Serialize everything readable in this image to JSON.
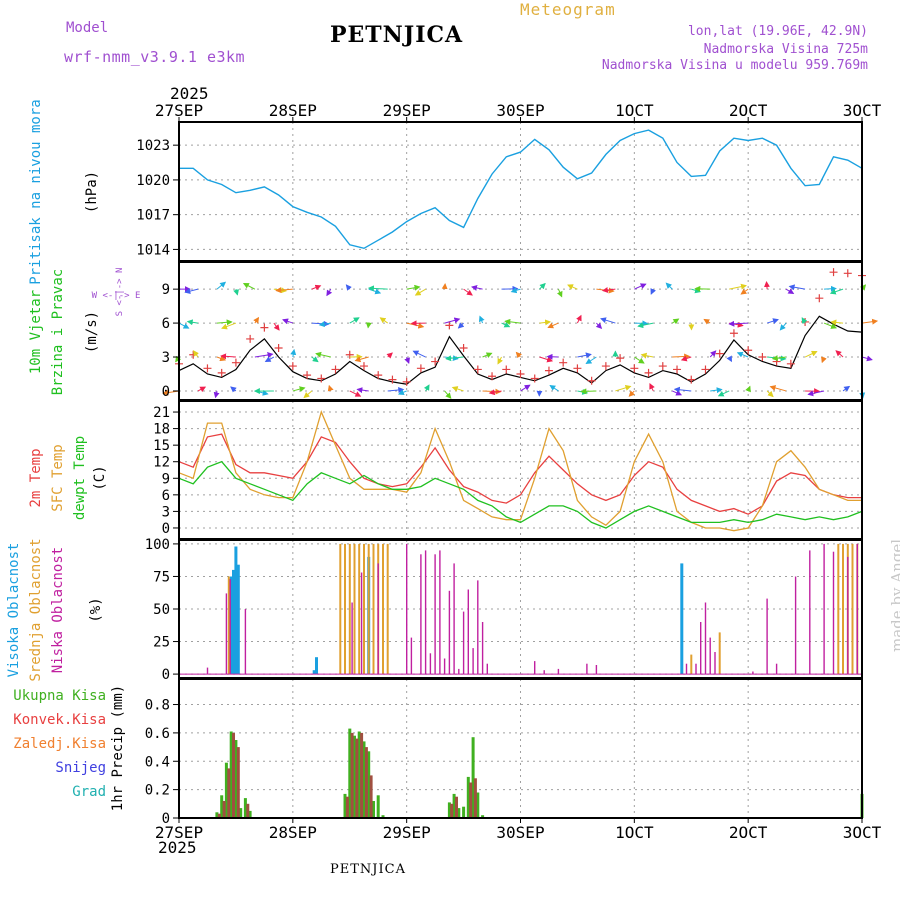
{
  "header": {
    "model_label": "Model",
    "model_name": "wrf-nmm_v3.9.1 e3km",
    "title": "PETNJICA",
    "meteogram": "Meteogram",
    "lonlat": "lon,lat (19.96E, 42.9N)",
    "altitude": "Nadmorska Visina 725m",
    "model_altitude": "Nadmorska Visina u modelu 959.769m"
  },
  "time_axis": {
    "year_top": "2025",
    "year_bottom": "2025",
    "labels": [
      "27SEP",
      "28SEP",
      "29SEP",
      "30SEP",
      "1OCT",
      "2OCT",
      "3OCT"
    ],
    "label_positions_hours": [
      0,
      24,
      48,
      72,
      96,
      120,
      144
    ]
  },
  "footer": {
    "station": "PETNJICA",
    "credit": "made by Angel"
  },
  "colors": {
    "pressure": "#1aa0e0",
    "t2m": "#e84040",
    "sfc": "#e0a030",
    "dewpt": "#20c020",
    "high": "#1aa0e0",
    "mid": "#e0a030",
    "low": "#c020a0",
    "precip_total": "#40b020",
    "precip_conv": "#a05040",
    "speed": "#000000",
    "gust": "#e04040"
  },
  "chart_data": [
    {
      "type": "line",
      "title": "Pritisak na nivou mora",
      "ylabel": "(hPa)",
      "ylim": [
        1013,
        1025
      ],
      "yticks": [
        1014,
        1017,
        1020,
        1023
      ],
      "x_hours": [
        0,
        3,
        6,
        9,
        12,
        15,
        18,
        21,
        24,
        27,
        30,
        33,
        36,
        39,
        42,
        45,
        48,
        51,
        54,
        57,
        60,
        63,
        66,
        69,
        72,
        75,
        78,
        81,
        84,
        87,
        90,
        93,
        96,
        99,
        102,
        105,
        108,
        111,
        114,
        117,
        120,
        123,
        126,
        129,
        132,
        135,
        138,
        141,
        144
      ],
      "series": [
        {
          "name": "Pritisak na nivou mora",
          "values": [
            1021,
            1021,
            1020,
            1019.6,
            1018.9,
            1019.1,
            1019.4,
            1018.7,
            1017.7,
            1017.2,
            1016.8,
            1016,
            1014.4,
            1014.1,
            1014.8,
            1015.5,
            1016.4,
            1017.1,
            1017.6,
            1016.5,
            1015.9,
            1018.4,
            1020.5,
            1022,
            1022.4,
            1023.5,
            1022.6,
            1021.1,
            1020.1,
            1020.6,
            1022.2,
            1023.4,
            1024,
            1024.3,
            1023.6,
            1021.5,
            1020.3,
            1020.4,
            1022.5,
            1023.6,
            1023.4,
            1023.6,
            1023,
            1021,
            1019.5,
            1019.6,
            1022,
            1021.7,
            1021
          ]
        }
      ]
    },
    {
      "type": "line",
      "title": "10m Vjetar Brzina i Pravac",
      "ylabel": "(m/s)",
      "ylim": [
        -0.8,
        11.4
      ],
      "yticks": [
        0,
        3,
        6,
        9
      ],
      "x_hours": [
        0,
        3,
        6,
        9,
        12,
        15,
        18,
        21,
        24,
        27,
        30,
        33,
        36,
        39,
        42,
        45,
        48,
        51,
        54,
        57,
        60,
        63,
        66,
        69,
        72,
        75,
        78,
        81,
        84,
        87,
        90,
        93,
        96,
        99,
        102,
        105,
        108,
        111,
        114,
        117,
        120,
        123,
        126,
        129,
        132,
        135,
        138,
        141,
        144
      ],
      "series": [
        {
          "name": "Brzina",
          "values": [
            1.8,
            2.4,
            1.5,
            1.2,
            1.9,
            3.6,
            4.6,
            3,
            1.7,
            1.1,
            0.9,
            1.5,
            2.6,
            1.8,
            1.1,
            0.8,
            0.6,
            1.6,
            2.1,
            4.8,
            3.1,
            1.5,
            1,
            1.5,
            1.2,
            0.9,
            1.4,
            2,
            1.6,
            0.7,
            1.8,
            2.3,
            1.6,
            1.2,
            1.8,
            1.5,
            0.8,
            1.5,
            2.7,
            4.5,
            3.2,
            2.6,
            2.2,
            2,
            4.9,
            6.6,
            5.9,
            5.3,
            5.2
          ]
        },
        {
          "name": "Udar",
          "values": [
            2.4,
            3.2,
            2,
            1.6,
            2.5,
            4.6,
            5.6,
            3.8,
            2.2,
            1.4,
            1.1,
            1.9,
            3.2,
            2.2,
            1.4,
            1,
            0.8,
            2,
            2.6,
            5.8,
            3.8,
            1.9,
            1.3,
            1.9,
            1.5,
            1.1,
            1.8,
            2.5,
            2,
            0.9,
            2.2,
            2.9,
            2,
            1.6,
            2.2,
            1.9,
            1,
            1.9,
            3.3,
            5.1,
            3.6,
            3.0,
            2.6,
            2.4,
            6.1,
            8.2,
            10.5,
            10.4,
            10.2
          ]
        }
      ],
      "barb_levels": [
        "9",
        "6",
        "3",
        "0"
      ],
      "compass": {
        "n": "N",
        "e": "E",
        "s": "S",
        "w": "W"
      }
    },
    {
      "type": "line",
      "title": "2m Temp / SFC Temp / dewpt Temp",
      "ylabel": "(C)",
      "ylim": [
        -2,
        23
      ],
      "yticks": [
        0,
        3,
        6,
        9,
        12,
        15,
        18,
        21
      ],
      "x_hours": [
        0,
        3,
        6,
        9,
        12,
        15,
        18,
        21,
        24,
        27,
        30,
        33,
        36,
        39,
        42,
        45,
        48,
        51,
        54,
        57,
        60,
        63,
        66,
        69,
        72,
        75,
        78,
        81,
        84,
        87,
        90,
        93,
        96,
        99,
        102,
        105,
        108,
        111,
        114,
        117,
        120,
        123,
        126,
        129,
        132,
        135,
        138,
        141,
        144
      ],
      "series": [
        {
          "name": "2m Temp",
          "values": [
            12,
            11,
            16.5,
            17,
            11.5,
            10,
            10,
            9.5,
            9,
            12,
            16.5,
            15.5,
            12,
            9,
            8,
            7.5,
            8,
            11,
            14.5,
            10.5,
            7.5,
            6.5,
            5,
            4.5,
            6,
            10,
            13,
            10.5,
            8,
            6,
            5,
            6,
            9.5,
            12,
            11,
            7,
            5,
            4,
            3,
            3.5,
            2.5,
            4,
            8.5,
            10,
            9.5,
            7,
            6,
            5.5,
            5.5
          ]
        },
        {
          "name": "SFC Temp",
          "values": [
            10,
            9,
            19,
            19,
            10,
            7,
            6,
            5.5,
            5.5,
            12,
            21,
            15,
            9,
            7,
            7,
            7,
            6.5,
            10,
            18,
            12,
            5,
            3.5,
            2,
            1.5,
            1.5,
            9,
            18,
            14,
            5,
            2,
            0.5,
            3,
            12,
            17,
            12,
            3,
            1,
            0,
            0,
            -0.5,
            0,
            4,
            12,
            14,
            11,
            7,
            6,
            5,
            5
          ]
        },
        {
          "name": "dewpt Temp",
          "values": [
            9,
            8,
            11,
            12,
            9,
            8,
            7,
            6,
            5,
            8,
            10,
            9,
            8,
            9.5,
            8,
            7,
            7,
            7.5,
            9,
            8,
            7,
            5,
            4,
            2,
            1,
            2.5,
            4,
            4,
            3,
            1,
            0,
            1.5,
            3,
            4,
            3,
            2,
            1,
            1,
            1,
            1.5,
            1,
            1.5,
            2.5,
            2,
            1.5,
            2,
            1.5,
            2,
            3
          ]
        }
      ]
    },
    {
      "type": "bar",
      "title": "Visoka / Srednja / Niska Oblacnost",
      "ylabel": "(%)",
      "ylim": [
        -3,
        103
      ],
      "yticks": [
        0,
        25,
        50,
        75,
        100
      ],
      "series": [
        {
          "name": "Visoka Oblacnost",
          "x_hours": [
            11,
            11.5,
            12,
            12.5,
            28.5,
            29,
            40,
            106
          ],
          "values": [
            75,
            80,
            98,
            84,
            3,
            13,
            90,
            85
          ]
        },
        {
          "name": "Srednja Oblacnost",
          "x_hours": [
            10.5,
            34,
            35,
            36,
            37,
            38,
            39,
            40,
            41,
            42,
            43,
            44,
            108,
            114,
            139,
            140,
            141,
            142,
            143,
            144
          ],
          "values": [
            75,
            100,
            100,
            100,
            100,
            100,
            100,
            100,
            100,
            100,
            100,
            100,
            15,
            32,
            100,
            100,
            100,
            100,
            100,
            100
          ]
        },
        {
          "name": "Niska Oblacnost",
          "x_hours": [
            6,
            10,
            10.8,
            14,
            36.5,
            38.5,
            42,
            48,
            49,
            51,
            52,
            53,
            54,
            55,
            56,
            57,
            58,
            59,
            60,
            61,
            62,
            63,
            64,
            65,
            75,
            77,
            80,
            86,
            88,
            107,
            109,
            110,
            111,
            112,
            113,
            121,
            124,
            126,
            130,
            133,
            136,
            138,
            141,
            143
          ],
          "values": [
            5,
            62,
            73,
            50,
            55,
            78,
            85,
            100,
            28,
            92,
            95,
            16,
            92,
            95,
            12,
            64,
            85,
            4,
            48,
            65,
            20,
            72,
            40,
            8,
            10,
            3,
            4,
            8,
            7,
            8,
            8,
            40,
            55,
            28,
            17,
            2,
            58,
            8,
            75,
            95,
            100,
            94,
            90,
            100
          ]
        }
      ]
    },
    {
      "type": "bar",
      "title": "1hr Precip",
      "ylabel": "1hr Precip (mm)",
      "ylim": [
        0,
        0.98
      ],
      "yticks": [
        0,
        0.2,
        0.4,
        0.6,
        0.8
      ],
      "legend": [
        "Ukupna Kisa",
        "Konvek.Kisa",
        "Zaledj.Kisa",
        "Snijeg",
        "Grad"
      ],
      "series": [
        {
          "name": "Ukupna Kisa",
          "x_hours": [
            8,
            9,
            10,
            11,
            12,
            13,
            14,
            15,
            35,
            36,
            37,
            38,
            39,
            40,
            41,
            42,
            43,
            57,
            58,
            59,
            60,
            61,
            62,
            63,
            64,
            144
          ],
          "values": [
            0.04,
            0.16,
            0.39,
            0.61,
            0.55,
            0.07,
            0.14,
            0.05,
            0.17,
            0.63,
            0.58,
            0.61,
            0.54,
            0.47,
            0.12,
            0.16,
            0.02,
            0.11,
            0.17,
            0.07,
            0.08,
            0.29,
            0.57,
            0.18,
            0.02,
            0.17
          ]
        },
        {
          "name": "Konvek.Kisa",
          "x_hours": [
            8.5,
            9.5,
            10.5,
            11.5,
            12.5,
            14.5,
            35.5,
            36.5,
            37.5,
            38.5,
            39.5,
            40.5,
            57.5,
            58.5,
            61.5,
            62.5
          ],
          "values": [
            0.03,
            0.12,
            0.35,
            0.6,
            0.5,
            0.1,
            0.15,
            0.6,
            0.56,
            0.6,
            0.5,
            0.3,
            0.1,
            0.15,
            0.25,
            0.28
          ]
        }
      ]
    }
  ]
}
